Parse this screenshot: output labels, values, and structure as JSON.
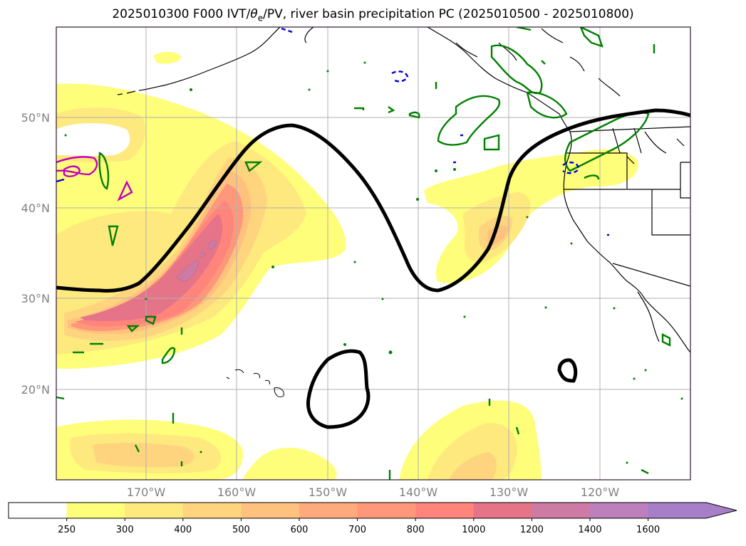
{
  "title": {
    "prefix": "2025010300 F000 IVT/",
    "theta": "θ",
    "sub": "e",
    "suffix": "/PV, river basin precipitation PC (2025010500 - 2025010800)"
  },
  "map": {
    "lat_labels": [
      "50°N",
      "40°N",
      "30°N",
      "20°N"
    ],
    "lon_labels": [
      "170°W",
      "160°W",
      "150°W",
      "140°W",
      "130°W",
      "120°W"
    ]
  },
  "colorbar": {
    "ticks": [
      "250",
      "300",
      "400",
      "500",
      "600",
      "700",
      "800",
      "1000",
      "1200",
      "1400",
      "1600"
    ],
    "colors": [
      "#ffffff",
      "#fefe7a",
      "#fee97e",
      "#fed47e",
      "#ffc27e",
      "#ffaa7c",
      "#ff977a",
      "#ff847b",
      "#e57488",
      "#cd7ba4",
      "#bd80bd",
      "#a77fc9"
    ],
    "extend": "max"
  }
}
